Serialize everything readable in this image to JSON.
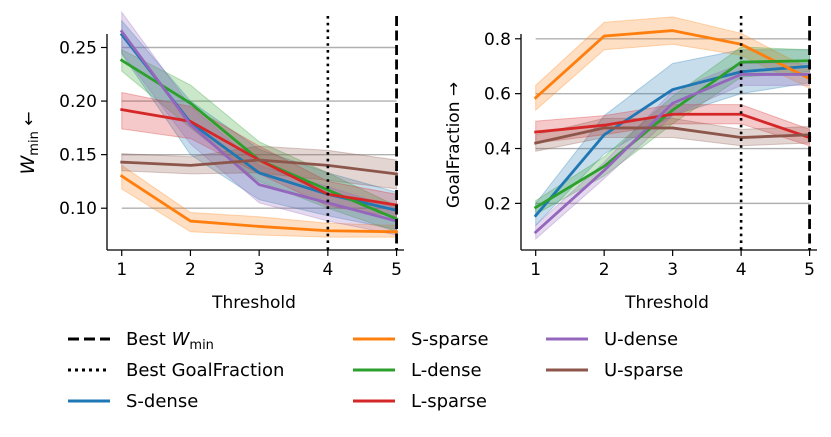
{
  "colors": {
    "S-dense": "#1f77b4",
    "S-sparse": "#ff7f0e",
    "L-dense": "#2ca02c",
    "L-sparse": "#d62728",
    "U-dense": "#9467bd",
    "U-sparse": "#8c564b"
  },
  "legend": {
    "best_wmin_prefix": "Best ",
    "wmin_symbol": "W",
    "wmin_subscript": "min",
    "best_goalfraction": "Best GoalFraction",
    "series_labels": [
      "S-dense",
      "S-sparse",
      "L-dense",
      "L-sparse",
      "U-dense",
      "U-sparse"
    ]
  },
  "chart_data": [
    {
      "type": "line",
      "title": "",
      "xlabel": "Threshold",
      "ylabel_symbol": "W",
      "ylabel_subscript": "min",
      "ylabel_arrow": "←",
      "x": [
        1,
        2,
        3,
        4,
        5
      ],
      "x_ticks": [
        "1",
        "2",
        "3",
        "4",
        "5"
      ],
      "y_ticks": [
        "0.10",
        "0.15",
        "0.20",
        "0.25"
      ],
      "y_tick_values": [
        0.1,
        0.15,
        0.2,
        0.25
      ],
      "xlim": [
        0.8,
        5.05
      ],
      "ylim": [
        0.061,
        0.285
      ],
      "grid": "horizontal",
      "best_wmin_x": 5,
      "best_goalfraction_x": 4,
      "series": [
        {
          "name": "S-dense",
          "values": [
            0.262,
            0.18,
            0.133,
            0.113,
            0.098
          ],
          "lower": [
            0.244,
            0.15,
            0.108,
            0.093,
            0.08
          ],
          "upper": [
            0.275,
            0.2,
            0.155,
            0.133,
            0.115
          ]
        },
        {
          "name": "S-sparse",
          "values": [
            0.13,
            0.088,
            0.083,
            0.079,
            0.078
          ],
          "lower": [
            0.118,
            0.078,
            0.075,
            0.073,
            0.073
          ],
          "upper": [
            0.14,
            0.096,
            0.092,
            0.086,
            0.084
          ]
        },
        {
          "name": "L-dense",
          "values": [
            0.238,
            0.198,
            0.145,
            0.117,
            0.09
          ],
          "lower": [
            0.228,
            0.175,
            0.125,
            0.1,
            0.078
          ],
          "upper": [
            0.248,
            0.215,
            0.162,
            0.133,
            0.102
          ]
        },
        {
          "name": "L-sparse",
          "values": [
            0.192,
            0.181,
            0.145,
            0.113,
            0.103
          ],
          "lower": [
            0.174,
            0.165,
            0.132,
            0.102,
            0.092
          ],
          "upper": [
            0.208,
            0.195,
            0.158,
            0.125,
            0.113
          ]
        },
        {
          "name": "U-dense",
          "values": [
            0.265,
            0.178,
            0.122,
            0.105,
            0.088
          ],
          "lower": [
            0.245,
            0.16,
            0.105,
            0.088,
            0.075
          ],
          "upper": [
            0.283,
            0.195,
            0.14,
            0.12,
            0.1
          ]
        },
        {
          "name": "U-sparse",
          "values": [
            0.143,
            0.14,
            0.145,
            0.14,
            0.132
          ],
          "lower": [
            0.135,
            0.132,
            0.133,
            0.126,
            0.118
          ],
          "upper": [
            0.151,
            0.148,
            0.158,
            0.154,
            0.145
          ]
        }
      ]
    },
    {
      "type": "line",
      "title": "",
      "xlabel": "Threshold",
      "ylabel": "GoalFraction",
      "ylabel_arrow": "→",
      "x": [
        1,
        2,
        3,
        4,
        5
      ],
      "x_ticks": [
        "1",
        "2",
        "3",
        "4",
        "5"
      ],
      "y_ticks": [
        "0.2",
        "0.4",
        "0.6",
        "0.8"
      ],
      "y_tick_values": [
        0.2,
        0.4,
        0.6,
        0.8
      ],
      "xlim": [
        0.8,
        5.05
      ],
      "ylim": [
        0.03,
        0.905
      ],
      "grid": "horizontal",
      "best_wmin_x": 5,
      "best_goalfraction_x": 4,
      "series": [
        {
          "name": "S-dense",
          "values": [
            0.155,
            0.45,
            0.615,
            0.68,
            0.7
          ],
          "lower": [
            0.12,
            0.38,
            0.52,
            0.6,
            0.64
          ],
          "upper": [
            0.2,
            0.52,
            0.71,
            0.76,
            0.76
          ]
        },
        {
          "name": "S-sparse",
          "values": [
            0.585,
            0.81,
            0.83,
            0.78,
            0.655
          ],
          "lower": [
            0.54,
            0.76,
            0.78,
            0.74,
            0.62
          ],
          "upper": [
            0.63,
            0.86,
            0.88,
            0.82,
            0.69
          ]
        },
        {
          "name": "L-dense",
          "values": [
            0.185,
            0.335,
            0.54,
            0.715,
            0.72
          ],
          "lower": [
            0.16,
            0.3,
            0.49,
            0.66,
            0.68
          ],
          "upper": [
            0.21,
            0.37,
            0.59,
            0.77,
            0.76
          ]
        },
        {
          "name": "L-sparse",
          "values": [
            0.46,
            0.485,
            0.525,
            0.525,
            0.44
          ],
          "lower": [
            0.42,
            0.45,
            0.49,
            0.49,
            0.41
          ],
          "upper": [
            0.5,
            0.52,
            0.56,
            0.56,
            0.47
          ]
        },
        {
          "name": "U-dense",
          "values": [
            0.095,
            0.32,
            0.565,
            0.67,
            0.67
          ],
          "lower": [
            0.07,
            0.29,
            0.52,
            0.63,
            0.63
          ],
          "upper": [
            0.12,
            0.35,
            0.61,
            0.71,
            0.71
          ]
        },
        {
          "name": "U-sparse",
          "values": [
            0.42,
            0.475,
            0.475,
            0.44,
            0.45
          ],
          "lower": [
            0.39,
            0.44,
            0.44,
            0.41,
            0.42
          ],
          "upper": [
            0.45,
            0.51,
            0.51,
            0.47,
            0.48
          ]
        }
      ]
    }
  ]
}
